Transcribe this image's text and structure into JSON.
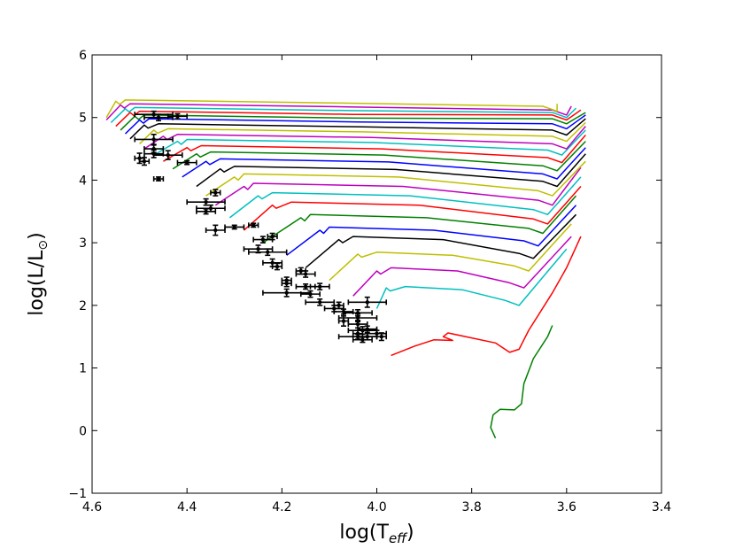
{
  "chart_data": {
    "type": "line",
    "title": "",
    "xlabel": {
      "main": "log(T",
      "sub": "eff",
      "close": ")"
    },
    "ylabel": {
      "main": "log(L/L",
      "sun": "⊙",
      "close": ")"
    },
    "xlim": [
      4.6,
      3.4
    ],
    "ylim": [
      -1,
      6
    ],
    "xticks": [
      {
        "v": 4.6,
        "label": "4.6"
      },
      {
        "v": 4.4,
        "label": "4.4"
      },
      {
        "v": 4.2,
        "label": "4.2"
      },
      {
        "v": 4.0,
        "label": "4.0"
      },
      {
        "v": 3.8,
        "label": "3.8"
      },
      {
        "v": 3.6,
        "label": "3.6"
      },
      {
        "v": 3.4,
        "label": "3.4"
      }
    ],
    "yticks": [
      {
        "v": -1,
        "label": "−1"
      },
      {
        "v": 0,
        "label": "0"
      },
      {
        "v": 1,
        "label": "1"
      },
      {
        "v": 2,
        "label": "2"
      },
      {
        "v": 3,
        "label": "3"
      },
      {
        "v": 4,
        "label": "4"
      },
      {
        "v": 5,
        "label": "5"
      },
      {
        "v": 6,
        "label": "6"
      }
    ],
    "colors": [
      "#008000",
      "#ff0000",
      "#00bfbf",
      "#bf00bf",
      "#bfbf00",
      "#000000",
      "#0000ff"
    ],
    "track_shape": {
      "green_lowest": [
        [
          3.75,
          -0.12
        ],
        [
          3.76,
          0.05
        ],
        [
          3.755,
          0.25
        ],
        [
          3.74,
          0.34
        ],
        [
          3.71,
          0.33
        ],
        [
          3.695,
          0.43
        ],
        [
          3.69,
          0.75
        ],
        [
          3.67,
          1.15
        ],
        [
          3.64,
          1.5
        ],
        [
          3.63,
          1.68
        ]
      ],
      "red_low": [
        [
          3.97,
          1.2
        ],
        [
          3.92,
          1.35
        ],
        [
          3.88,
          1.45
        ],
        [
          3.84,
          1.44
        ],
        [
          3.86,
          1.5
        ],
        [
          3.85,
          1.56
        ],
        [
          3.75,
          1.4
        ],
        [
          3.72,
          1.25
        ],
        [
          3.7,
          1.3
        ],
        [
          3.68,
          1.6
        ],
        [
          3.63,
          2.2
        ],
        [
          3.6,
          2.6
        ],
        [
          3.57,
          3.1
        ]
      ]
    },
    "tracks": [
      {
        "zams": [
          4.0,
          1.95
        ],
        "tams": [
          3.98,
          2.28
        ],
        "hook": [
          3.94,
          2.3
        ],
        "rgb": [
          3.7,
          2.0
        ],
        "top": [
          3.6,
          2.9
        ]
      },
      {
        "zams": [
          4.05,
          2.15
        ],
        "tams": [
          4.0,
          2.55
        ],
        "hook": [
          3.97,
          2.6
        ],
        "rgb": [
          3.69,
          2.28
        ],
        "top": [
          3.59,
          3.1
        ]
      },
      {
        "zams": [
          4.1,
          2.4
        ],
        "tams": [
          4.04,
          2.82
        ],
        "hook": [
          4.0,
          2.85
        ],
        "rgb": [
          3.68,
          2.55
        ],
        "top": [
          3.59,
          3.3
        ]
      },
      {
        "zams": [
          4.15,
          2.6
        ],
        "tams": [
          4.08,
          3.05
        ],
        "hook": [
          4.05,
          3.1
        ],
        "rgb": [
          3.67,
          2.75
        ],
        "top": [
          3.58,
          3.45
        ]
      },
      {
        "zams": [
          4.19,
          2.8
        ],
        "tams": [
          4.12,
          3.2
        ],
        "hook": [
          4.1,
          3.25
        ],
        "rgb": [
          3.66,
          2.95
        ],
        "top": [
          3.58,
          3.6
        ]
      },
      {
        "zams": [
          4.24,
          3.0
        ],
        "tams": [
          4.16,
          3.4
        ],
        "hook": [
          4.14,
          3.45
        ],
        "rgb": [
          3.65,
          3.15
        ],
        "top": [
          3.58,
          3.75
        ]
      },
      {
        "zams": [
          4.28,
          3.2
        ],
        "tams": [
          4.22,
          3.6
        ],
        "hook": [
          4.18,
          3.65
        ],
        "rgb": [
          3.64,
          3.3
        ],
        "top": [
          3.57,
          3.9
        ]
      },
      {
        "zams": [
          4.31,
          3.4
        ],
        "tams": [
          4.25,
          3.75
        ],
        "hook": [
          4.22,
          3.8
        ],
        "rgb": [
          3.64,
          3.45
        ],
        "top": [
          3.57,
          4.05
        ]
      },
      {
        "zams": [
          4.34,
          3.6
        ],
        "tams": [
          4.28,
          3.9
        ],
        "hook": [
          4.26,
          3.95
        ],
        "rgb": [
          3.63,
          3.6
        ],
        "top": [
          3.57,
          4.2
        ]
      },
      {
        "zams": [
          4.36,
          3.75
        ],
        "tams": [
          4.3,
          4.05
        ],
        "hook": [
          4.28,
          4.1
        ],
        "rgb": [
          3.63,
          3.75
        ],
        "top": [
          3.56,
          4.3
        ]
      },
      {
        "zams": [
          4.38,
          3.9
        ],
        "tams": [
          4.33,
          4.18
        ],
        "hook": [
          4.3,
          4.22
        ],
        "rgb": [
          3.62,
          3.9
        ],
        "top": [
          3.56,
          4.42
        ]
      },
      {
        "zams": [
          4.41,
          4.05
        ],
        "tams": [
          4.36,
          4.3
        ],
        "hook": [
          4.33,
          4.34
        ],
        "rgb": [
          3.62,
          4.02
        ],
        "top": [
          3.56,
          4.52
        ]
      },
      {
        "zams": [
          4.43,
          4.18
        ],
        "tams": [
          4.38,
          4.42
        ],
        "hook": [
          4.35,
          4.45
        ],
        "rgb": [
          3.62,
          4.15
        ],
        "top": [
          3.56,
          4.62
        ]
      },
      {
        "zams": [
          4.45,
          4.3
        ],
        "tams": [
          4.4,
          4.52
        ],
        "hook": [
          4.37,
          4.55
        ],
        "rgb": [
          3.61,
          4.28
        ],
        "top": [
          3.56,
          4.72
        ]
      },
      {
        "zams": [
          4.47,
          4.4
        ],
        "tams": [
          4.42,
          4.62
        ],
        "hook": [
          4.4,
          4.65
        ],
        "rgb": [
          3.61,
          4.4
        ],
        "top": [
          3.56,
          4.8
        ]
      },
      {
        "zams": [
          4.49,
          4.5
        ],
        "tams": [
          4.45,
          4.7
        ],
        "hook": [
          4.42,
          4.73
        ],
        "rgb": [
          3.6,
          4.5
        ],
        "top": [
          3.56,
          4.86
        ]
      },
      {
        "zams": [
          4.5,
          4.58
        ],
        "tams": [
          4.47,
          4.8
        ],
        "hook": [
          4.44,
          4.82
        ],
        "rgb": [
          3.6,
          4.62
        ],
        "top": [
          3.56,
          4.92
        ]
      },
      {
        "zams": [
          4.52,
          4.66
        ],
        "tams": [
          4.49,
          4.88
        ],
        "hook": [
          4.46,
          4.9
        ],
        "rgb": [
          3.6,
          4.72
        ],
        "top": [
          3.56,
          4.98
        ]
      },
      {
        "zams": [
          4.53,
          4.74
        ],
        "tams": [
          4.5,
          4.96
        ],
        "hook": [
          4.48,
          4.98
        ],
        "rgb": [
          3.6,
          4.82
        ],
        "top": [
          3.56,
          5.04
        ]
      },
      {
        "zams": [
          4.54,
          4.8
        ],
        "tams": [
          4.51,
          5.02
        ],
        "hook": [
          4.49,
          5.04
        ],
        "rgb": [
          3.6,
          4.9
        ],
        "top": [
          3.56,
          5.08
        ]
      },
      {
        "zams": [
          4.55,
          4.86
        ],
        "tams": [
          4.52,
          5.08
        ],
        "hook": [
          4.5,
          5.1
        ],
        "rgb": [
          3.6,
          4.96
        ],
        "top": [
          3.57,
          5.12
        ]
      },
      {
        "zams": [
          4.56,
          4.92
        ],
        "tams": [
          4.53,
          5.14
        ],
        "hook": [
          4.51,
          5.16
        ],
        "rgb": [
          3.6,
          5.0
        ],
        "top": [
          3.58,
          5.15
        ]
      },
      {
        "zams": [
          4.57,
          4.96
        ],
        "tams": [
          4.54,
          5.2
        ],
        "hook": [
          4.52,
          5.22
        ],
        "rgb": [
          3.6,
          5.04
        ],
        "top": [
          3.59,
          5.18
        ]
      },
      {
        "zams": [
          4.57,
          5.0
        ],
        "tams": [
          4.55,
          5.26
        ],
        "hook": [
          4.53,
          5.28
        ],
        "rgb": [
          3.62,
          5.1
        ],
        "top": [
          3.62,
          5.22
        ]
      }
    ],
    "stars": [
      [
        4.47,
        5.05,
        0.04,
        0.05
      ],
      [
        4.46,
        5.0,
        0.03,
        0.05
      ],
      [
        4.42,
        5.02,
        0.02,
        0.04
      ],
      [
        4.47,
        4.65,
        0.04,
        0.08
      ],
      [
        4.47,
        4.5,
        0.02,
        0.06
      ],
      [
        4.44,
        4.4,
        0.03,
        0.07
      ],
      [
        4.47,
        4.42,
        0.02,
        0.06
      ],
      [
        4.5,
        4.35,
        0.01,
        0.08
      ],
      [
        4.49,
        4.3,
        0.01,
        0.06
      ],
      [
        4.4,
        4.28,
        0.02,
        0.03
      ],
      [
        4.46,
        4.02,
        0.01,
        0.03
      ],
      [
        4.34,
        3.8,
        0.01,
        0.05
      ],
      [
        4.36,
        3.65,
        0.04,
        0.05
      ],
      [
        4.35,
        3.55,
        0.03,
        0.05
      ],
      [
        4.36,
        3.5,
        0.02,
        0.04
      ],
      [
        4.34,
        3.2,
        0.02,
        0.08
      ],
      [
        4.3,
        3.25,
        0.02,
        0.03
      ],
      [
        4.26,
        3.28,
        0.01,
        0.03
      ],
      [
        4.24,
        3.05,
        0.02,
        0.05
      ],
      [
        4.22,
        3.1,
        0.01,
        0.05
      ],
      [
        4.25,
        2.9,
        0.03,
        0.06
      ],
      [
        4.23,
        2.85,
        0.04,
        0.05
      ],
      [
        4.22,
        2.68,
        0.02,
        0.06
      ],
      [
        4.21,
        2.62,
        0.01,
        0.05
      ],
      [
        4.19,
        2.4,
        0.01,
        0.05
      ],
      [
        4.19,
        2.35,
        0.01,
        0.05
      ],
      [
        4.16,
        2.55,
        0.01,
        0.05
      ],
      [
        4.15,
        2.5,
        0.02,
        0.05
      ],
      [
        4.12,
        2.3,
        0.02,
        0.05
      ],
      [
        4.15,
        2.3,
        0.02,
        0.04
      ],
      [
        4.19,
        2.2,
        0.05,
        0.06
      ],
      [
        4.14,
        2.18,
        0.02,
        0.05
      ],
      [
        4.08,
        2.0,
        0.01,
        0.05
      ],
      [
        4.09,
        1.95,
        0.02,
        0.05
      ],
      [
        4.07,
        1.9,
        0.02,
        0.04
      ],
      [
        4.12,
        2.05,
        0.03,
        0.05
      ],
      [
        4.07,
        1.75,
        0.01,
        0.08
      ],
      [
        4.04,
        1.8,
        0.04,
        0.06
      ],
      [
        4.04,
        1.7,
        0.02,
        0.06
      ],
      [
        4.03,
        1.6,
        0.03,
        0.06
      ],
      [
        4.04,
        1.55,
        0.01,
        0.05
      ],
      [
        4.02,
        1.62,
        0.02,
        0.05
      ],
      [
        4.02,
        1.5,
        0.02,
        0.05
      ],
      [
        4.0,
        1.55,
        0.02,
        0.05
      ],
      [
        4.04,
        1.5,
        0.04,
        0.04
      ],
      [
        4.03,
        1.45,
        0.02,
        0.04
      ],
      [
        3.99,
        1.5,
        0.01,
        0.06
      ],
      [
        4.02,
        2.05,
        0.04,
        0.08
      ],
      [
        4.04,
        1.88,
        0.03,
        0.05
      ]
    ]
  }
}
